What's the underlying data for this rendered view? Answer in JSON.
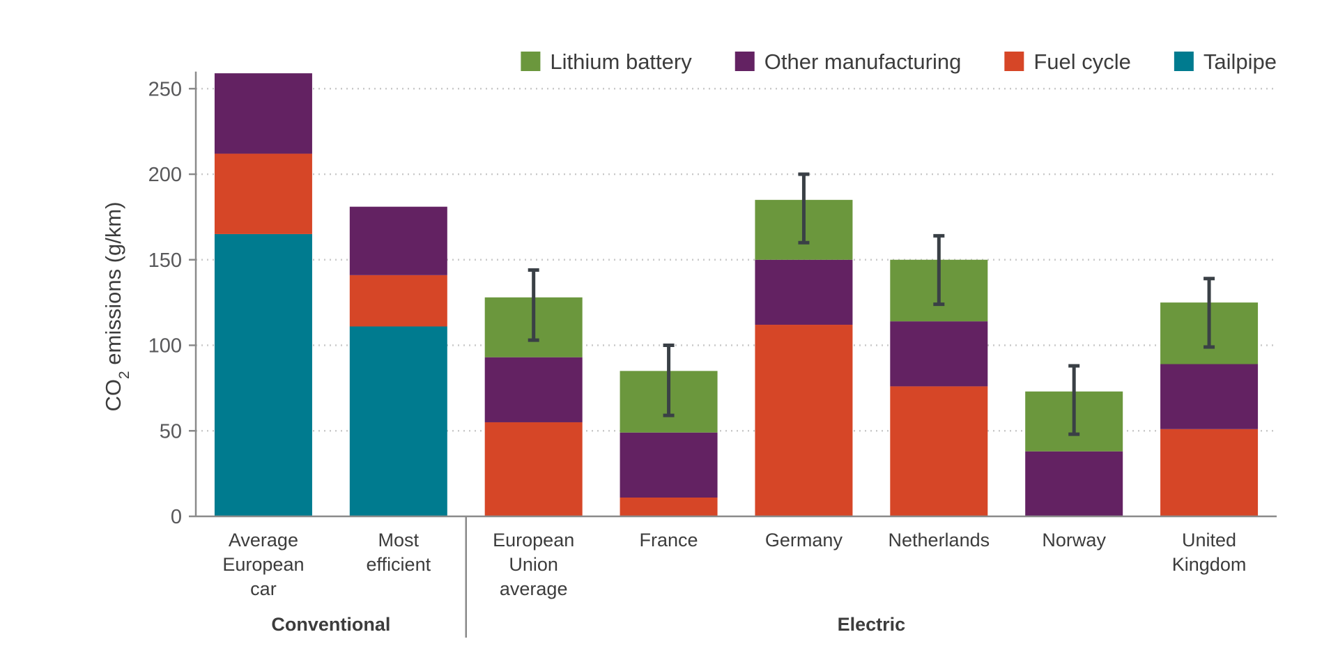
{
  "chart_data": {
    "type": "bar",
    "stacked": true,
    "ylabel_parts": [
      "CO",
      "2",
      " emissions (g/km)"
    ],
    "ylim": [
      0,
      260
    ],
    "yticks": [
      0,
      50,
      100,
      150,
      200,
      250
    ],
    "grid": "horizontal dotted",
    "legend_position": "top-right",
    "categories": [
      [
        "Average",
        "European",
        "car"
      ],
      [
        "Most",
        "efficient"
      ],
      [
        "European",
        "Union",
        "average"
      ],
      [
        "France"
      ],
      [
        "Germany"
      ],
      [
        "Netherlands"
      ],
      [
        "Norway"
      ],
      [
        "United",
        "Kingdom"
      ]
    ],
    "groups": [
      {
        "label": "Conventional",
        "category_indices": [
          0,
          1
        ]
      },
      {
        "label": "Electric",
        "category_indices": [
          2,
          3,
          4,
          5,
          6,
          7
        ]
      }
    ],
    "series": [
      {
        "name": "Tailpipe",
        "color": "#007b8f",
        "values": [
          165,
          111,
          0,
          0,
          0,
          0,
          0,
          0
        ]
      },
      {
        "name": "Fuel cycle",
        "color": "#d64627",
        "values": [
          47,
          30,
          55,
          11,
          112,
          76,
          0,
          51
        ]
      },
      {
        "name": "Other manufacturing",
        "color": "#632262",
        "values": [
          47,
          40,
          38,
          38,
          38,
          38,
          38,
          38
        ]
      },
      {
        "name": "Lithium battery",
        "color": "#6b973d",
        "values": [
          0,
          0,
          35,
          36,
          35,
          36,
          35,
          36
        ]
      }
    ],
    "legend_order": [
      "Lithium battery",
      "Other manufacturing",
      "Fuel cycle",
      "Tailpipe"
    ],
    "error_bars": [
      null,
      null,
      [
        103,
        144
      ],
      [
        59,
        100
      ],
      [
        160,
        200
      ],
      [
        124,
        164
      ],
      [
        48,
        88
      ],
      [
        99,
        139
      ]
    ],
    "error_bar_color": "#3a4046"
  }
}
